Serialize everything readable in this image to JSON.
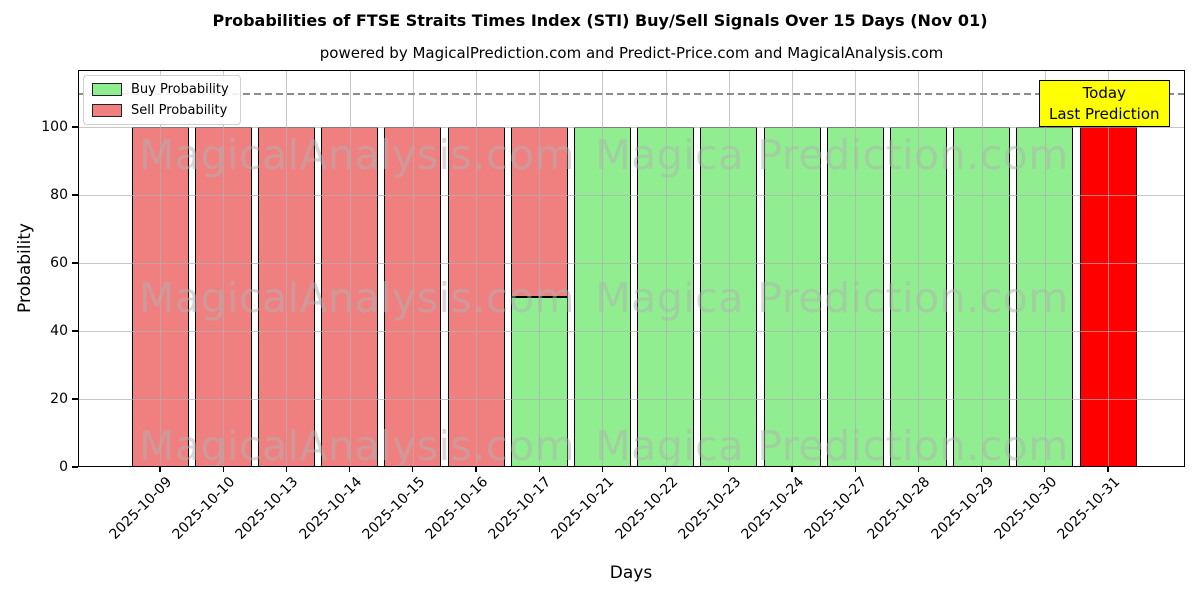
{
  "title": "Probabilities of FTSE Straits Times Index (STI) Buy/Sell Signals Over 15 Days (Nov 01)",
  "subtitle": "powered by MagicalPrediction.com and Predict-Price.com and MagicalAnalysis.com",
  "legend": {
    "items": [
      {
        "label": "Buy Probability",
        "color": "#90ee90"
      },
      {
        "label": "Sell Probability",
        "color": "#f08080"
      }
    ]
  },
  "annotation_box": {
    "lines": [
      "Today",
      "Last Prediction"
    ],
    "bg_color": "#ffff00"
  },
  "watermarks": [
    "MagicalAnalysis.com",
    "Magica Prediction.com"
  ],
  "axes": {
    "x_label": "Days",
    "y_label": "Probability",
    "y_tick_labels": [
      "0",
      "20",
      "40",
      "60",
      "80",
      "100"
    ],
    "y_ticks": [
      0,
      20,
      40,
      60,
      80,
      100
    ]
  },
  "colors": {
    "buy": "#90ee90",
    "sell": "#f08080",
    "today": "#ff0000",
    "grid": "#b0b0b0",
    "dashed": "#8c8c8c"
  },
  "chart_data": {
    "type": "bar",
    "stacked": true,
    "title": "Probabilities of FTSE Straits Times Index (STI) Buy/Sell Signals Over 15 Days (Nov 01)",
    "xlabel": "Days",
    "ylabel": "Probability",
    "ylim": [
      0,
      117
    ],
    "dashed_line_y": 110,
    "grid": true,
    "legend_position": "upper left",
    "categories": [
      "2025-10-09",
      "2025-10-10",
      "2025-10-13",
      "2025-10-14",
      "2025-10-15",
      "2025-10-16",
      "2025-10-17",
      "2025-10-21",
      "2025-10-22",
      "2025-10-23",
      "2025-10-24",
      "2025-10-27",
      "2025-10-28",
      "2025-10-29",
      "2025-10-30",
      "2025-10-31"
    ],
    "series": [
      {
        "name": "Buy Probability",
        "color": "#90ee90",
        "values": [
          0,
          0,
          0,
          0,
          0,
          0,
          50,
          100,
          100,
          100,
          100,
          100,
          100,
          100,
          100,
          0
        ]
      },
      {
        "name": "Sell Probability",
        "color": "#f08080",
        "values": [
          100,
          100,
          100,
          100,
          100,
          100,
          50,
          0,
          0,
          0,
          0,
          0,
          0,
          0,
          0,
          0
        ]
      },
      {
        "name": "Today Last Prediction",
        "color": "#ff0000",
        "values": [
          0,
          0,
          0,
          0,
          0,
          0,
          0,
          0,
          0,
          0,
          0,
          0,
          0,
          0,
          0,
          100
        ]
      }
    ]
  }
}
